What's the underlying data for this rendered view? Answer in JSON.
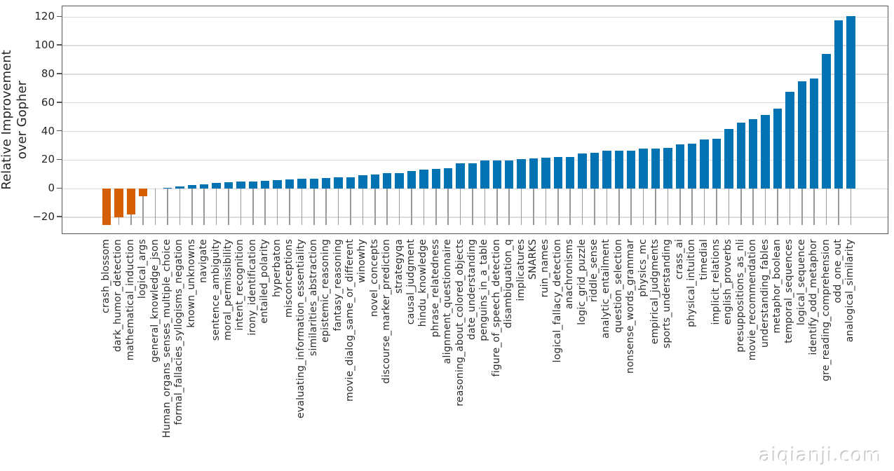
{
  "watermark": "aiqianji.com",
  "chart_data": {
    "type": "bar",
    "title": "",
    "xlabel": "",
    "ylabel": "Relative Improvement\nover Gopher",
    "ylim": [
      -32,
      128
    ],
    "yticks": [
      -20,
      0,
      20,
      40,
      60,
      80,
      100,
      120
    ],
    "grid": "horizontal",
    "legend": "none",
    "positive_color": "#0173b2",
    "negative_color": "#d55e00",
    "stem_color": "#9a9a9a",
    "categories": [
      "crash_blossom",
      "dark_humor_detection",
      "mathematical_induction",
      "logical_args",
      "general_knowledge_json",
      "Human_organs_senses_multiple_choice",
      "formal_fallacies_syllogisms_negation",
      "known_unknowns",
      "navigate",
      "sentence_ambiguity",
      "moral_permissibility",
      "intent_recognition",
      "irony_identification",
      "entailed_polarity",
      "hyperbaton",
      "misconceptions",
      "evaluating_information_essentiality",
      "similarities_abstraction",
      "epistemic_reasoning",
      "fantasy_reasoning",
      "movie_dialog_same_or_different",
      "winowhy",
      "novel_concepts",
      "discourse_marker_prediction",
      "strategyqa",
      "causal_judgment",
      "hindu_knowledge",
      "phrase_relatedness",
      "alignment_questionnaire",
      "reasoning_about_colored_objects",
      "date_understanding",
      "penguins_in_a_table",
      "figure_of_speech_detection",
      "disambiguation_q",
      "implicatures",
      "SNARKS",
      "ruin_names",
      "logical_fallacy_detection",
      "anachronisms",
      "logic_grid_puzzle",
      "riddle_sense",
      "analytic_entailment",
      "question_selection",
      "nonsense_words_grammar",
      "physics_mc",
      "empirical_judgments",
      "sports_understanding",
      "crass_ai",
      "physical_intuition",
      "timedial",
      "implicit_relations",
      "english_proverbs",
      "presuppositions_as_nli",
      "movie_recommendation",
      "understanding_fables",
      "metaphor_boolean",
      "temporal_sequences",
      "logical_sequence",
      "identify_odd_metaphor",
      "gre_reading_comprehension",
      "odd_one_out",
      "analogical_similarity"
    ],
    "values": [
      -25.5,
      -20,
      -18,
      -5,
      0,
      0.7,
      1.5,
      2.5,
      3,
      4,
      4.5,
      5,
      5,
      5.5,
      6,
      6.5,
      7,
      7,
      7.5,
      8,
      8,
      9.5,
      10,
      11,
      11,
      12.5,
      13.5,
      14,
      14.5,
      18,
      18,
      19.5,
      19.5,
      19.5,
      20.5,
      21,
      21.5,
      22,
      22,
      24.5,
      25,
      26.5,
      26.5,
      26.5,
      28,
      28,
      28.5,
      31,
      31.5,
      34.5,
      35,
      42,
      46,
      48.5,
      51.5,
      56,
      67.5,
      75,
      77,
      94,
      117.5,
      120.5
    ]
  }
}
